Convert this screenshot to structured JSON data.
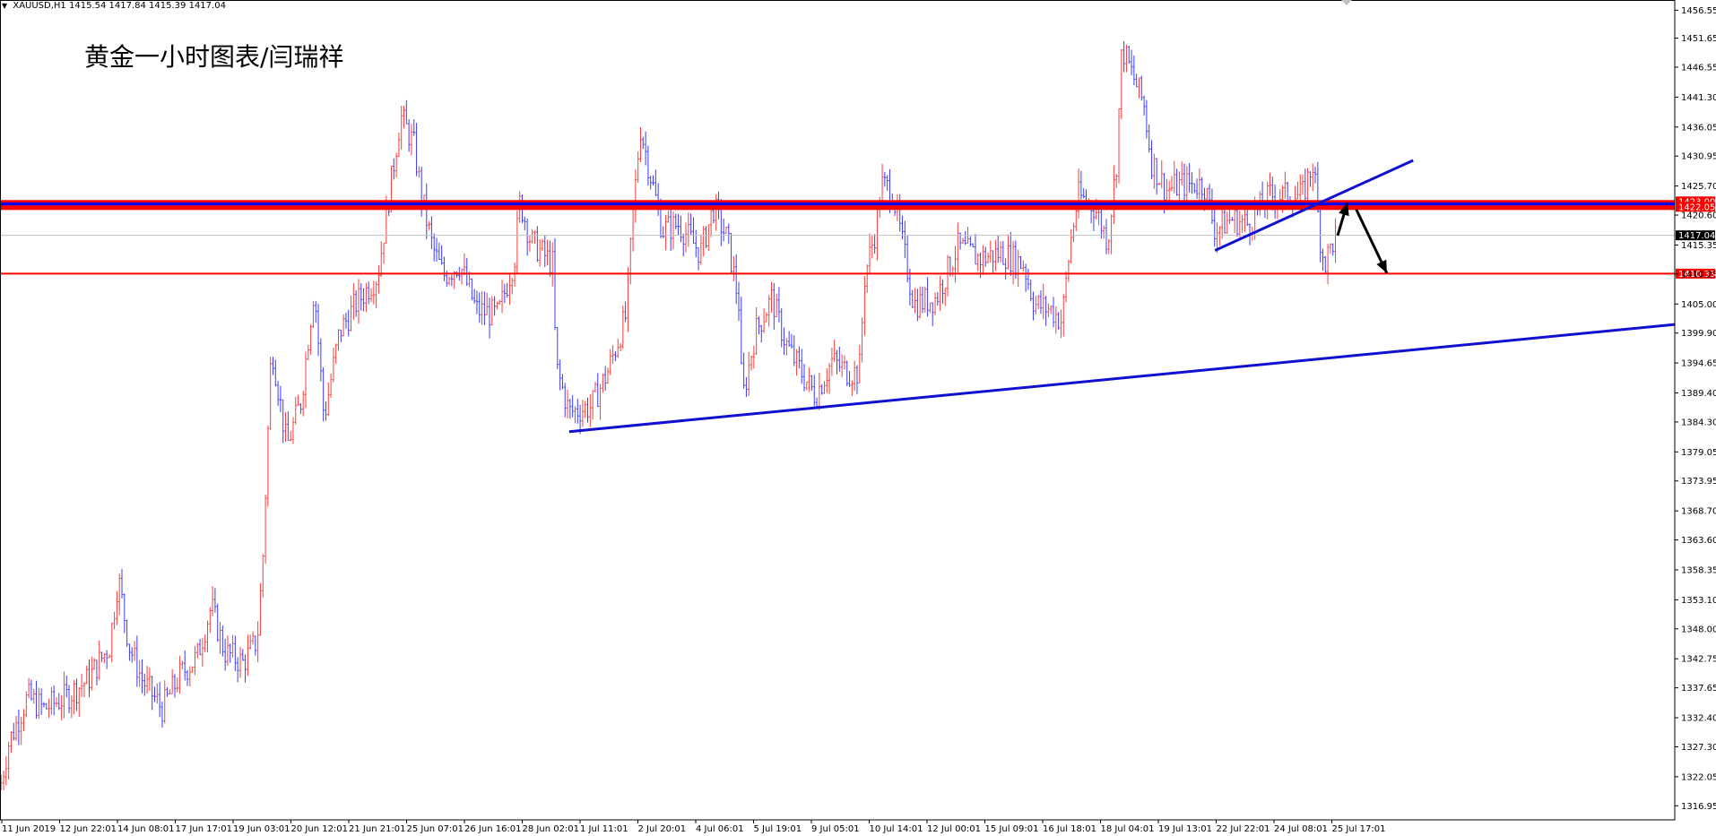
{
  "symbol_bar": {
    "symbol": "XAUUSD,H1",
    "ohlc": "1415.54 1417.84 1415.39 1417.04"
  },
  "title": "黄金一小时图表/闫瑞祥",
  "colors": {
    "bull": "#ff3b3b",
    "bear": "#3b3bff",
    "level_red": "#ff0000",
    "level_blue": "#0000ff",
    "trend": "#1010d0",
    "arrow": "#000000",
    "current": "#c0c0c0"
  },
  "chart_data": {
    "type": "candlestick",
    "timeframe": "H1",
    "ylim": [
      1314.48,
      1458.34
    ],
    "y_ticks": [
      "1456.55",
      "1451.65",
      "1446.55",
      "1441.30",
      "1436.05",
      "1430.95",
      "1425.70",
      "1420.60",
      "1415.35",
      "1410.25",
      "1405.00",
      "1399.90",
      "1394.65",
      "1389.40",
      "1384.30",
      "1379.05",
      "1373.95",
      "1368.70",
      "1363.60",
      "1358.35",
      "1353.10",
      "1348.00",
      "1342.75",
      "1337.65",
      "1332.40",
      "1327.30",
      "1322.05",
      "1316.95"
    ],
    "x_ticks": [
      "11 Jun 2019",
      "12 Jun 22:01",
      "14 Jun 08:01",
      "17 Jun 17:01",
      "19 Jun 03:01",
      "20 Jun 12:01",
      "21 Jun 21:01",
      "25 Jun 07:01",
      "26 Jun 16:01",
      "28 Jun 02:01",
      "1 Jul 11:01",
      "2 Jul 20:01",
      "4 Jul 06:01",
      "5 Jul 19:01",
      "9 Jul 05:01",
      "10 Jul 14:01",
      "12 Jul 00:01",
      "15 Jul 09:01",
      "16 Jul 18:01",
      "18 Jul 04:01",
      "19 Jul 13:01",
      "22 Jul 22:01",
      "24 Jul 08:01",
      "25 Jul 17:01"
    ],
    "price_path": [
      [
        0,
        1320
      ],
      [
        8,
        1328
      ],
      [
        25,
        1336
      ],
      [
        40,
        1334
      ],
      [
        60,
        1336
      ],
      [
        80,
        1339
      ],
      [
        100,
        1345
      ],
      [
        108,
        1357
      ],
      [
        118,
        1345
      ],
      [
        130,
        1339
      ],
      [
        148,
        1334
      ],
      [
        165,
        1340
      ],
      [
        180,
        1343
      ],
      [
        193,
        1352
      ],
      [
        205,
        1344
      ],
      [
        222,
        1342
      ],
      [
        235,
        1346
      ],
      [
        240,
        1360
      ],
      [
        248,
        1398
      ],
      [
        262,
        1380
      ],
      [
        275,
        1388
      ],
      [
        287,
        1408
      ],
      [
        296,
        1385
      ],
      [
        310,
        1400
      ],
      [
        325,
        1405
      ],
      [
        345,
        1410
      ],
      [
        360,
        1430
      ],
      [
        366,
        1438
      ],
      [
        378,
        1433
      ],
      [
        385,
        1424
      ],
      [
        395,
        1415
      ],
      [
        405,
        1410
      ],
      [
        420,
        1412
      ],
      [
        435,
        1404
      ],
      [
        455,
        1403
      ],
      [
        470,
        1413
      ],
      [
        475,
        1423
      ],
      [
        485,
        1416
      ],
      [
        505,
        1412
      ],
      [
        508,
        1394
      ],
      [
        520,
        1386
      ],
      [
        540,
        1387
      ],
      [
        555,
        1393
      ],
      [
        572,
        1403
      ],
      [
        578,
        1420
      ],
      [
        585,
        1436
      ],
      [
        595,
        1427
      ],
      [
        605,
        1418
      ],
      [
        620,
        1419
      ],
      [
        640,
        1414
      ],
      [
        652,
        1422
      ],
      [
        665,
        1416
      ],
      [
        675,
        1405
      ],
      [
        678,
        1388
      ],
      [
        690,
        1400
      ],
      [
        705,
        1406
      ],
      [
        718,
        1398
      ],
      [
        735,
        1392
      ],
      [
        745,
        1389
      ],
      [
        760,
        1395
      ],
      [
        775,
        1393
      ],
      [
        785,
        1393
      ],
      [
        790,
        1410
      ],
      [
        800,
        1418
      ],
      [
        805,
        1426
      ],
      [
        815,
        1425
      ],
      [
        825,
        1415
      ],
      [
        835,
        1405
      ],
      [
        855,
        1406
      ],
      [
        875,
        1415
      ],
      [
        895,
        1413
      ],
      [
        915,
        1414
      ],
      [
        935,
        1412
      ],
      [
        945,
        1405
      ],
      [
        960,
        1404
      ],
      [
        970,
        1402
      ],
      [
        978,
        1416
      ],
      [
        985,
        1424
      ],
      [
        1000,
        1422
      ],
      [
        1012,
        1416
      ],
      [
        1020,
        1430
      ],
      [
        1025,
        1450
      ],
      [
        1035,
        1445
      ],
      [
        1045,
        1440
      ],
      [
        1052,
        1430
      ],
      [
        1065,
        1425
      ],
      [
        1080,
        1426
      ],
      [
        1100,
        1426
      ],
      [
        1110,
        1418
      ],
      [
        1125,
        1420
      ],
      [
        1140,
        1419
      ],
      [
        1160,
        1424
      ],
      [
        1175,
        1424
      ],
      [
        1190,
        1424
      ],
      [
        1200,
        1430
      ],
      [
        1205,
        1418
      ],
      [
        1210,
        1412
      ],
      [
        1220,
        1417
      ]
    ],
    "horizontal_levels": [
      {
        "label": "1423.00",
        "price": 1423.0,
        "color": "red"
      },
      {
        "label": "1422.05",
        "price": 1422.05,
        "color": "blue"
      },
      {
        "label": "1410.33",
        "price": 1410.33,
        "color": "red"
      }
    ],
    "current_price": {
      "label": "1417.04",
      "price": 1417.04
    },
    "trendlines": [
      {
        "name": "lower-support",
        "start": [
          520,
          1382.6
        ],
        "end": [
          1530,
          1401.4
        ]
      },
      {
        "name": "rising-wedge",
        "start": [
          1110,
          1414.4
        ],
        "end": [
          1291,
          1430.2
        ]
      }
    ],
    "arrows": [
      {
        "name": "retest-up",
        "from": [
          1222,
          1417.0
        ],
        "to": [
          1231,
          1422.8
        ]
      },
      {
        "name": "drop-down",
        "from": [
          1239,
          1421.6
        ],
        "to": [
          1267,
          1410.4
        ]
      }
    ]
  }
}
